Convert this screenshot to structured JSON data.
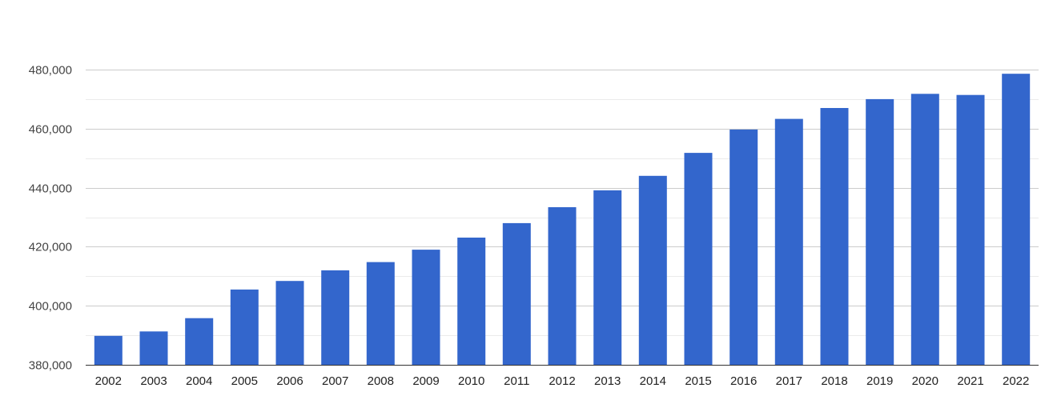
{
  "chart_data": {
    "type": "bar",
    "title": "",
    "xlabel": "",
    "ylabel": "",
    "categories": [
      "2002",
      "2003",
      "2004",
      "2005",
      "2006",
      "2007",
      "2008",
      "2009",
      "2010",
      "2011",
      "2012",
      "2013",
      "2014",
      "2015",
      "2016",
      "2017",
      "2018",
      "2019",
      "2020",
      "2021",
      "2022"
    ],
    "values": [
      389800,
      391300,
      395800,
      405500,
      408400,
      412000,
      414800,
      419000,
      423100,
      428000,
      433400,
      439100,
      444000,
      451800,
      459700,
      463300,
      467000,
      470000,
      471800,
      471400,
      478600
    ],
    "ylim": [
      380000,
      480000
    ],
    "yticks": [
      380000,
      400000,
      420000,
      440000,
      460000,
      480000
    ],
    "ytick_labels": [
      "380,000",
      "400,000",
      "420,000",
      "440,000",
      "460,000",
      "480,000"
    ],
    "bar_color": "#3366cc",
    "gridline_color": "#cccccc",
    "minor_gridline_color": "#ebebeb",
    "grid": true,
    "legend": "none"
  }
}
